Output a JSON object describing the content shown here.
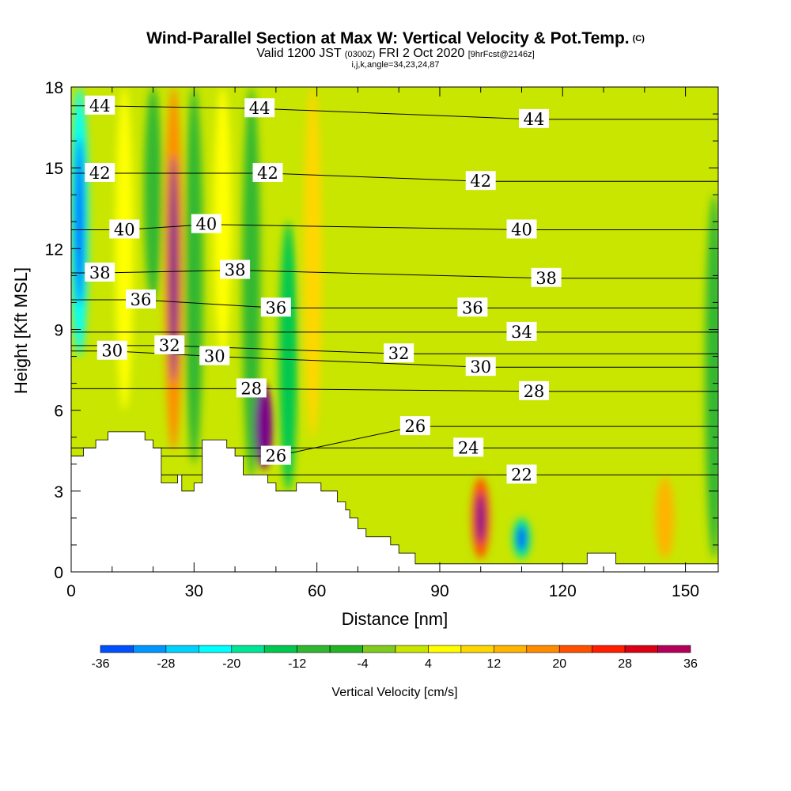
{
  "header": {
    "title": "Wind-Parallel Section at Max W: Vertical Velocity & Pot.Temp.",
    "copyright": "(C)",
    "valid_prefix": "Valid 1200 JST",
    "valid_utc": "(0300Z)",
    "valid_date": "FRI 2 Oct 2020",
    "forecast": "[9hrFcst@2146z]",
    "indices": "i,j,k,angle=34,23,24,87"
  },
  "chart_data": {
    "type": "heatmap",
    "xlabel": "Distance [nm]",
    "ylabel": "Height [Kft MSL]",
    "xlim": [
      0,
      158
    ],
    "ylim": [
      0,
      18
    ],
    "xticks": [
      "0",
      "30",
      "60",
      "90",
      "120",
      "150"
    ],
    "yticks": [
      "0",
      "3",
      "6",
      "9",
      "12",
      "15",
      "18"
    ],
    "colorbar": {
      "label": "Vertical Velocity [cm/s]",
      "tick_labels": [
        "-36",
        "-28",
        "-20",
        "-12",
        "-4",
        "4",
        "12",
        "20",
        "28",
        "36"
      ],
      "colors": [
        "#0000ff",
        "#0050ff",
        "#0096ff",
        "#00d2ff",
        "#00ffff",
        "#00e696",
        "#00c850",
        "#30b830",
        "#22b422",
        "#7fcc1e",
        "#c8e600",
        "#ffff00",
        "#ffd700",
        "#ffb400",
        "#ff8c00",
        "#ff5000",
        "#ff1e00",
        "#dc0014",
        "#b4005a",
        "#78008c",
        "#3c0096"
      ]
    },
    "theta_contour_labels": [
      {
        "value": "44",
        "x": 7,
        "y": 17.3
      },
      {
        "value": "44",
        "x": 46,
        "y": 17.2
      },
      {
        "value": "44",
        "x": 113,
        "y": 16.8
      },
      {
        "value": "42",
        "x": 7,
        "y": 14.8
      },
      {
        "value": "42",
        "x": 48,
        "y": 14.8
      },
      {
        "value": "42",
        "x": 100,
        "y": 14.5
      },
      {
        "value": "40",
        "x": 13,
        "y": 12.7
      },
      {
        "value": "40",
        "x": 33,
        "y": 12.9
      },
      {
        "value": "40",
        "x": 110,
        "y": 12.7
      },
      {
        "value": "38",
        "x": 7,
        "y": 11.1
      },
      {
        "value": "38",
        "x": 40,
        "y": 11.2
      },
      {
        "value": "38",
        "x": 116,
        "y": 10.9
      },
      {
        "value": "36",
        "x": 17,
        "y": 10.1
      },
      {
        "value": "36",
        "x": 50,
        "y": 9.8
      },
      {
        "value": "36",
        "x": 98,
        "y": 9.8
      },
      {
        "value": "34",
        "x": 110,
        "y": 8.9
      },
      {
        "value": "32",
        "x": 24,
        "y": 8.4
      },
      {
        "value": "32",
        "x": 80,
        "y": 8.1
      },
      {
        "value": "30",
        "x": 10,
        "y": 8.2
      },
      {
        "value": "30",
        "x": 35,
        "y": 8.0
      },
      {
        "value": "30",
        "x": 100,
        "y": 7.6
      },
      {
        "value": "28",
        "x": 44,
        "y": 6.8
      },
      {
        "value": "28",
        "x": 113,
        "y": 6.7
      },
      {
        "value": "26",
        "x": 84,
        "y": 5.4
      },
      {
        "value": "26",
        "x": 50,
        "y": 4.3
      },
      {
        "value": "24",
        "x": 97,
        "y": 4.6
      },
      {
        "value": "22",
        "x": 110,
        "y": 3.6
      }
    ],
    "vertical_velocity_cells": [
      {
        "x": 2,
        "y_top": 18,
        "y_bottom": 8,
        "w": -24
      },
      {
        "x": 13,
        "y_top": 18,
        "y_bottom": 6,
        "w": 6
      },
      {
        "x": 20,
        "y_top": 18,
        "y_bottom": 10,
        "w": -12
      },
      {
        "x": 25,
        "y_top": 18,
        "y_bottom": 4.5,
        "w": 16
      },
      {
        "x": 30,
        "y_top": 18,
        "y_bottom": 4,
        "w": -10
      },
      {
        "x": 37,
        "y_top": 18,
        "y_bottom": 8,
        "w": 5
      },
      {
        "x": 44,
        "y_top": 18,
        "y_bottom": 3.5,
        "w": -12
      },
      {
        "x": 47,
        "y_top": 7,
        "y_bottom": 3.8,
        "w": 36
      },
      {
        "x": 53,
        "y_top": 13,
        "y_bottom": 3,
        "w": -14
      },
      {
        "x": 59,
        "y_top": 18,
        "y_bottom": 5,
        "w": 10
      },
      {
        "x": 100,
        "y_top": 3.5,
        "y_bottom": 0.5,
        "w": 20
      },
      {
        "x": 110,
        "y_top": 2,
        "y_bottom": 0.5,
        "w": -20
      },
      {
        "x": 145,
        "y_top": 3.5,
        "y_bottom": 0.5,
        "w": 14
      },
      {
        "x": 157,
        "y_top": 14,
        "y_bottom": 0.5,
        "w": -10
      }
    ],
    "terrain_profile": [
      [
        0,
        4.3
      ],
      [
        3,
        4.3
      ],
      [
        3,
        4.6
      ],
      [
        6,
        4.6
      ],
      [
        6,
        4.9
      ],
      [
        9,
        4.9
      ],
      [
        9,
        5.2
      ],
      [
        18,
        5.2
      ],
      [
        18,
        4.9
      ],
      [
        20,
        4.9
      ],
      [
        20,
        4.6
      ],
      [
        22,
        4.6
      ],
      [
        22,
        3.3
      ],
      [
        26,
        3.3
      ],
      [
        26,
        3.6
      ],
      [
        27,
        3.6
      ],
      [
        27,
        3.0
      ],
      [
        30,
        3.0
      ],
      [
        30,
        3.3
      ],
      [
        32,
        3.3
      ],
      [
        32,
        4.9
      ],
      [
        38,
        4.9
      ],
      [
        38,
        4.6
      ],
      [
        40,
        4.6
      ],
      [
        40,
        4.3
      ],
      [
        42,
        4.3
      ],
      [
        42,
        3.6
      ],
      [
        48,
        3.6
      ],
      [
        48,
        3.3
      ],
      [
        50,
        3.3
      ],
      [
        50,
        3.0
      ],
      [
        55,
        3.0
      ],
      [
        55,
        3.3
      ],
      [
        61,
        3.3
      ],
      [
        61,
        3.0
      ],
      [
        65,
        3.0
      ],
      [
        65,
        2.6
      ],
      [
        67,
        2.6
      ],
      [
        67,
        2.3
      ],
      [
        68,
        2.3
      ],
      [
        68,
        2.0
      ],
      [
        70,
        2.0
      ],
      [
        70,
        1.6
      ],
      [
        72,
        1.6
      ],
      [
        72,
        1.3
      ],
      [
        78,
        1.3
      ],
      [
        78,
        1.0
      ],
      [
        80,
        1.0
      ],
      [
        80,
        0.7
      ],
      [
        84,
        0.7
      ],
      [
        84,
        0.3
      ],
      [
        126,
        0.3
      ],
      [
        126,
        0.7
      ],
      [
        133,
        0.7
      ],
      [
        133,
        0.3
      ],
      [
        158,
        0.3
      ]
    ]
  }
}
